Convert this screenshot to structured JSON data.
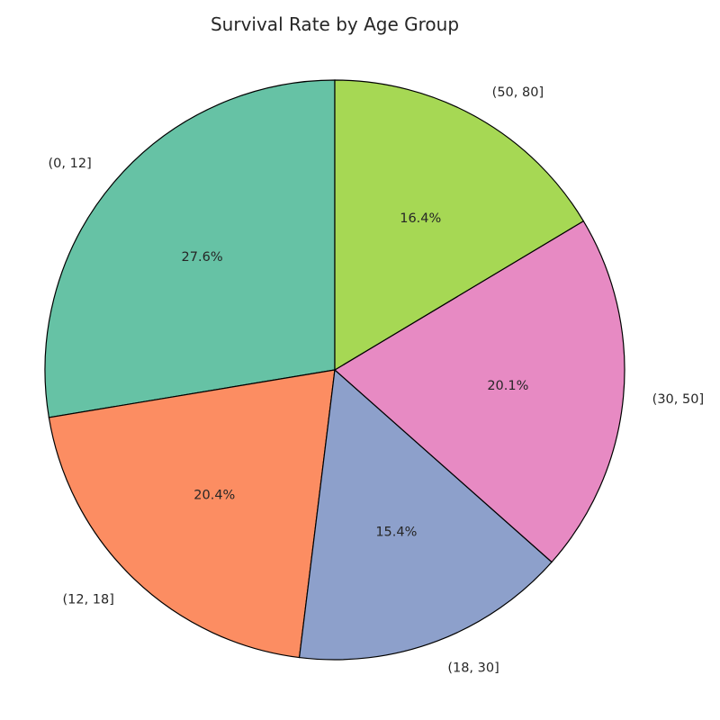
{
  "chart_data": {
    "type": "pie",
    "title": "Survival Rate by Age Group",
    "categories": [
      "(0, 12]",
      "(12, 18]",
      "(18, 30]",
      "(30, 50]",
      "(50, 80]"
    ],
    "values": [
      27.6,
      20.4,
      15.4,
      20.1,
      16.4
    ],
    "percent_labels": [
      "27.6%",
      "20.4%",
      "15.4%",
      "20.1%",
      "16.4%"
    ],
    "colors": [
      "#66c2a5",
      "#fc8d62",
      "#8da0cb",
      "#e78ac3",
      "#a6d854"
    ],
    "start_angle": "top",
    "direction": "counterclockwise"
  }
}
